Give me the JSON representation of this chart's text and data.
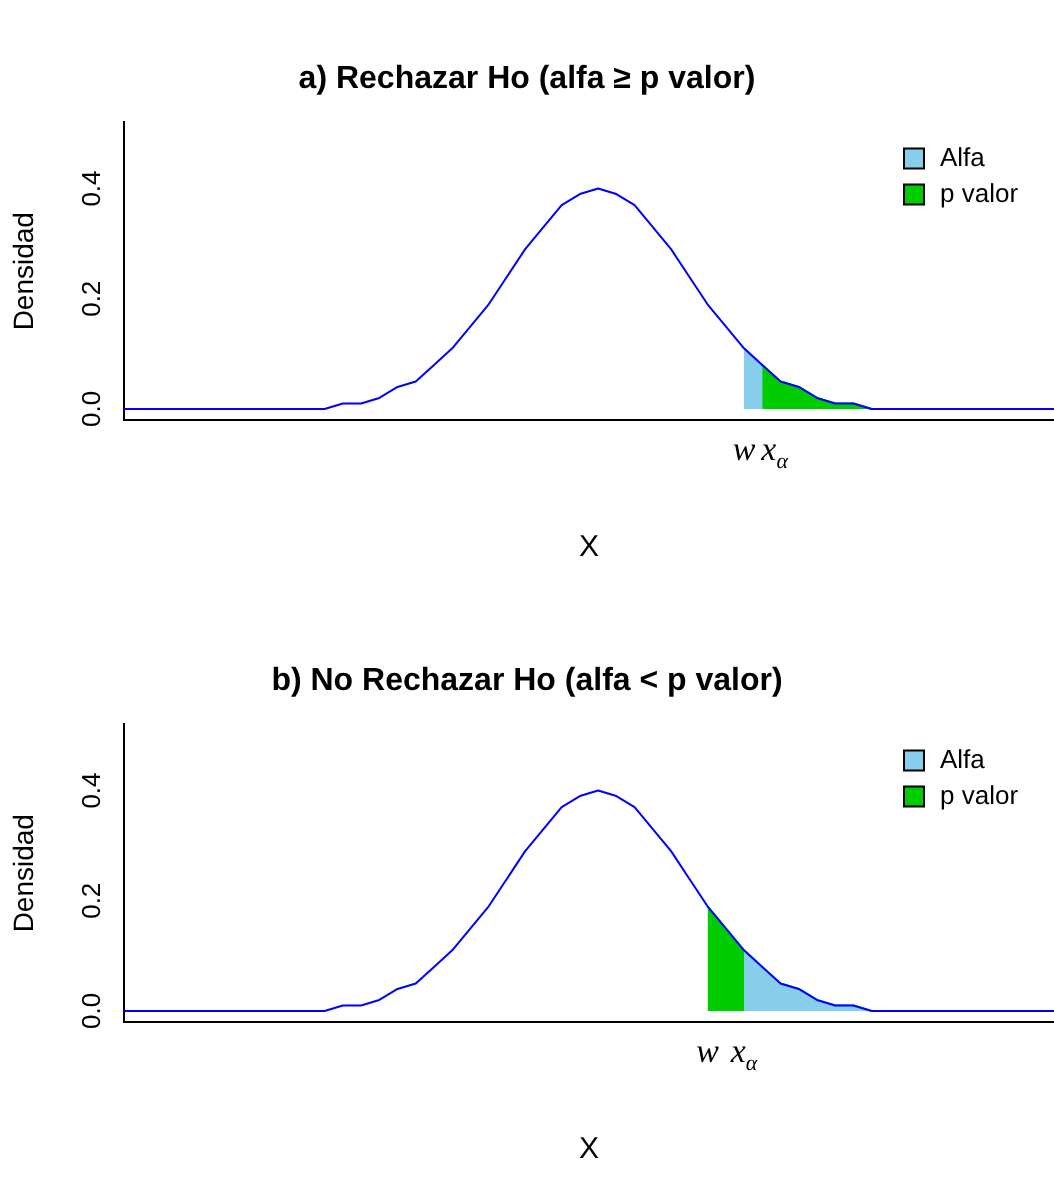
{
  "chart_data": [
    {
      "type": "line",
      "title": "a) Rechazar Ho (alfa ≥ p valor)",
      "xlabel": "X",
      "ylabel": "Densidad",
      "categories": [
        null,
        null,
        null,
        null,
        null,
        null,
        null,
        null,
        null,
        null,
        null,
        null,
        null,
        null,
        null,
        null,
        null,
        null,
        null,
        null,
        null,
        null,
        null,
        null,
        null,
        null,
        null,
        null,
        null,
        null,
        null,
        null,
        null,
        null,
        null,
        null,
        null,
        null,
        null,
        null,
        null,
        null,
        null,
        null,
        null,
        null,
        null,
        null,
        null,
        null,
        null,
        null
      ],
      "series": [
        {
          "type": "line",
          "color": "#0000ff",
          "values": [
            0,
            0,
            0,
            0,
            0,
            0,
            0,
            0,
            0,
            0,
            0,
            0,
            0.01,
            0.01,
            0.02,
            0.04,
            0.05,
            0.08,
            0.11,
            0.15,
            0.19,
            0.24,
            0.29,
            0.33,
            0.37,
            0.39,
            0.4,
            0.39,
            0.37,
            0.33,
            0.29,
            0.24,
            0.19,
            0.15,
            0.11,
            0.08,
            0.05,
            0.04,
            0.02,
            0.01,
            0.01,
            0,
            0,
            0,
            0,
            0,
            0,
            0,
            0,
            0,
            0,
            0
          ]
        },
        {
          "type": "area",
          "name": "Alfa",
          "color": "#87ceeb",
          "values": [
            null,
            null,
            null,
            null,
            null,
            null,
            null,
            null,
            null,
            null,
            null,
            null,
            null,
            null,
            null,
            null,
            null,
            null,
            null,
            null,
            null,
            null,
            null,
            null,
            null,
            null,
            null,
            null,
            null,
            null,
            null,
            null,
            null,
            null,
            0.11,
            0.08,
            0.05,
            0.04,
            0.02,
            0.01,
            0.01,
            0,
            0,
            null,
            null,
            null,
            null,
            null,
            null,
            null,
            null,
            null
          ]
        },
        {
          "type": "area",
          "name": "p valor",
          "color": "#00cd00",
          "values": [
            null,
            null,
            null,
            null,
            null,
            null,
            null,
            null,
            null,
            null,
            null,
            null,
            null,
            null,
            null,
            null,
            null,
            null,
            null,
            null,
            null,
            null,
            null,
            null,
            null,
            null,
            null,
            null,
            null,
            null,
            null,
            null,
            null,
            null,
            null,
            0.08,
            0.05,
            0.04,
            0.02,
            0.01,
            0.01,
            0,
            0,
            null,
            null,
            null,
            null,
            null,
            null,
            null,
            null,
            null
          ]
        }
      ],
      "ylim": [
        -0.02,
        0.52
      ],
      "yticks": [
        {
          "value": 0,
          "label": "0.0"
        },
        {
          "value": 0.2,
          "label": "0.2"
        },
        {
          "value": 0.4,
          "label": "0.4"
        }
      ],
      "tick_labels": "y",
      "legend": "top right",
      "marker": "none",
      "annotations": [
        "w",
        "x$_{α}$"
      ]
    },
    {
      "type": "line",
      "title": "b) No Rechazar Ho (alfa < p valor)",
      "xlabel": "X",
      "ylabel": "Densidad",
      "categories": [
        null,
        null,
        null,
        null,
        null,
        null,
        null,
        null,
        null,
        null,
        null,
        null,
        null,
        null,
        null,
        null,
        null,
        null,
        null,
        null,
        null,
        null,
        null,
        null,
        null,
        null,
        null,
        null,
        null,
        null,
        null,
        null,
        null,
        null,
        null,
        null,
        null,
        null,
        null,
        null,
        null,
        null,
        null,
        null,
        null,
        null,
        null,
        null,
        null,
        null,
        null,
        null
      ],
      "series": [
        {
          "type": "line",
          "color": "#0000ff",
          "values": [
            0,
            0,
            0,
            0,
            0,
            0,
            0,
            0,
            0,
            0,
            0,
            0,
            0.01,
            0.01,
            0.02,
            0.04,
            0.05,
            0.08,
            0.11,
            0.15,
            0.19,
            0.24,
            0.29,
            0.33,
            0.37,
            0.39,
            0.4,
            0.39,
            0.37,
            0.33,
            0.29,
            0.24,
            0.19,
            0.15,
            0.11,
            0.08,
            0.05,
            0.04,
            0.02,
            0.01,
            0.01,
            0,
            0,
            0,
            0,
            0,
            0,
            0,
            0,
            0,
            0,
            0
          ]
        },
        {
          "type": "area",
          "name": "Alfa",
          "color": "#87ceeb",
          "values": [
            null,
            null,
            null,
            null,
            null,
            null,
            null,
            null,
            null,
            null,
            null,
            null,
            null,
            null,
            null,
            null,
            null,
            null,
            null,
            null,
            null,
            null,
            null,
            null,
            null,
            null,
            null,
            null,
            null,
            null,
            null,
            null,
            null,
            null,
            0.11,
            0.08,
            0.05,
            0.04,
            0.02,
            0.01,
            0.01,
            0,
            0,
            null,
            null,
            null,
            null,
            null,
            null,
            null,
            null,
            null
          ]
        },
        {
          "type": "area",
          "name": "p valor",
          "color": "#00cd00",
          "values": [
            null,
            null,
            null,
            null,
            null,
            null,
            null,
            null,
            null,
            null,
            null,
            null,
            null,
            null,
            null,
            null,
            null,
            null,
            null,
            null,
            null,
            null,
            null,
            null,
            null,
            null,
            null,
            null,
            null,
            null,
            null,
            null,
            0.19,
            0.15,
            0.11,
            0.08,
            0.05,
            0.04,
            0.02,
            0.01,
            0.01,
            0,
            0,
            null,
            null,
            null,
            null,
            null,
            null,
            null,
            null,
            null
          ]
        }
      ],
      "ylim": [
        -0.02,
        0.52
      ],
      "yticks": [
        {
          "value": 0,
          "label": "0.0"
        },
        {
          "value": 0.2,
          "label": "0.2"
        },
        {
          "value": 0.4,
          "label": "0.4"
        }
      ],
      "tick_labels": "y",
      "legend": "top right",
      "marker": "none",
      "annotations": [
        "w",
        "x$_{α}$"
      ]
    }
  ]
}
